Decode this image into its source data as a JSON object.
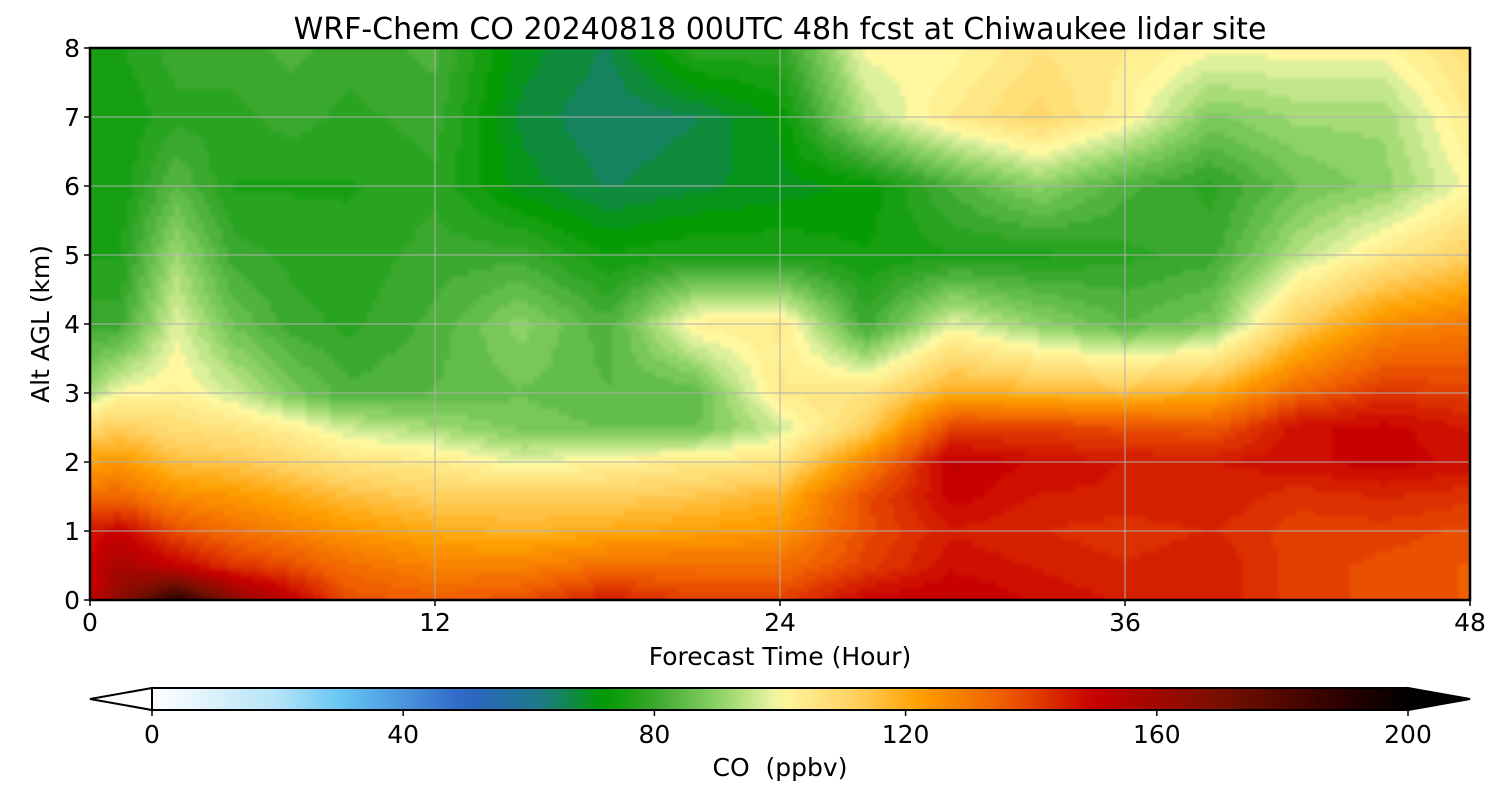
{
  "chart_data": {
    "type": "heatmap",
    "title": "WRF-Chem CO  20240818 00UTC 48h fcst at Chiwaukee lidar site",
    "xlabel": "Forecast Time (Hour)",
    "ylabel": "Alt AGL (km)",
    "xlim": [
      0,
      48
    ],
    "ylim": [
      0,
      8
    ],
    "xticks": [
      "0",
      "12",
      "24",
      "36",
      "48"
    ],
    "yticks": [
      "0",
      "1",
      "2",
      "3",
      "4",
      "5",
      "6",
      "7",
      "8"
    ],
    "grid": true,
    "colorbar": {
      "label": "CO  (ppbv)",
      "range": [
        0,
        200
      ],
      "ticks": [
        "0",
        "40",
        "80",
        "120",
        "160",
        "200"
      ],
      "extend": "both",
      "colors": [
        {
          "value": 0,
          "color": "#ffffff"
        },
        {
          "value": 20,
          "color": "#b4e4f8"
        },
        {
          "value": 30,
          "color": "#66c6f4"
        },
        {
          "value": 50,
          "color": "#2e64c6"
        },
        {
          "value": 62,
          "color": "#1e7a86"
        },
        {
          "value": 72,
          "color": "#009a00"
        },
        {
          "value": 80,
          "color": "#3aa82e"
        },
        {
          "value": 90,
          "color": "#8cd264"
        },
        {
          "value": 98,
          "color": "#e2f2a0"
        },
        {
          "value": 100,
          "color": "#fff8a0"
        },
        {
          "value": 112,
          "color": "#ffd060"
        },
        {
          "value": 122,
          "color": "#ffa000"
        },
        {
          "value": 135,
          "color": "#f06000"
        },
        {
          "value": 150,
          "color": "#c80000"
        },
        {
          "value": 170,
          "color": "#781000"
        },
        {
          "value": 190,
          "color": "#2a0000"
        },
        {
          "value": 200,
          "color": "#000000"
        }
      ]
    },
    "profiles": [
      {
        "hour": 0,
        "alt_km": [
          0,
          0.5,
          1,
          1.5,
          2,
          2.5,
          3,
          4,
          5,
          6,
          7,
          8
        ],
        "co_ppbv": [
          150,
          150,
          146,
          132,
          122,
          110,
          92,
          80,
          76,
          74,
          74,
          76
        ]
      },
      {
        "hour": 1,
        "alt_km": [
          0,
          0.5,
          1,
          1.5,
          2,
          2.5,
          3,
          4,
          5,
          6,
          7,
          8
        ],
        "co_ppbv": [
          165,
          158,
          150,
          134,
          124,
          112,
          100,
          80,
          76,
          74,
          74,
          76
        ]
      },
      {
        "hour": 3,
        "alt_km": [
          0,
          0.5,
          1,
          1.5,
          2,
          2.5,
          3,
          4,
          5,
          6,
          7,
          8
        ],
        "co_ppbv": [
          190,
          150,
          138,
          126,
          116,
          108,
          102,
          98,
          92,
          84,
          78,
          80
        ]
      },
      {
        "hour": 5,
        "alt_km": [
          0,
          0.5,
          1,
          1.5,
          2,
          2.5,
          3,
          4,
          5,
          6,
          7,
          8
        ],
        "co_ppbv": [
          165,
          142,
          132,
          124,
          114,
          106,
          96,
          86,
          80,
          76,
          78,
          80
        ]
      },
      {
        "hour": 7,
        "alt_km": [
          0,
          0.5,
          1,
          1.5,
          2,
          2.5,
          3,
          4,
          5,
          6,
          7,
          8
        ],
        "co_ppbv": [
          152,
          138,
          128,
          120,
          110,
          102,
          88,
          80,
          78,
          76,
          80,
          82
        ]
      },
      {
        "hour": 9,
        "alt_km": [
          0,
          0.5,
          1,
          1.5,
          2,
          2.5,
          3,
          4,
          5,
          6,
          7,
          8
        ],
        "co_ppbv": [
          138,
          132,
          124,
          116,
          106,
          96,
          82,
          78,
          77,
          76,
          78,
          80
        ]
      },
      {
        "hour": 12,
        "alt_km": [
          0,
          0.5,
          1,
          1.5,
          2,
          2.5,
          3,
          4,
          5,
          6,
          7,
          8
        ],
        "co_ppbv": [
          135,
          128,
          120,
          112,
          104,
          92,
          84,
          82,
          80,
          78,
          80,
          82
        ]
      },
      {
        "hour": 15,
        "alt_km": [
          0,
          0.5,
          1,
          1.5,
          2,
          2.5,
          3,
          4,
          5,
          6,
          7,
          8
        ],
        "co_ppbv": [
          138,
          128,
          118,
          112,
          98,
          88,
          86,
          90,
          80,
          70,
          68,
          70
        ]
      },
      {
        "hour": 18,
        "alt_km": [
          0,
          0.5,
          1,
          1.5,
          2,
          2.5,
          3,
          4,
          5,
          6,
          7,
          8
        ],
        "co_ppbv": [
          146,
          132,
          120,
          112,
          102,
          86,
          84,
          82,
          74,
          66,
          64,
          66
        ]
      },
      {
        "hour": 21,
        "alt_km": [
          0,
          0.5,
          1,
          1.5,
          2,
          2.5,
          3,
          4,
          5,
          6,
          7,
          8
        ],
        "co_ppbv": [
          140,
          132,
          122,
          114,
          104,
          86,
          84,
          102,
          76,
          68,
          66,
          78
        ]
      },
      {
        "hour": 24,
        "alt_km": [
          0,
          0.5,
          1,
          1.5,
          2,
          2.5,
          3,
          4,
          5,
          6,
          7,
          8
        ],
        "co_ppbv": [
          140,
          132,
          124,
          118,
          106,
          96,
          104,
          104,
          76,
          70,
          72,
          78
        ]
      },
      {
        "hour": 27,
        "alt_km": [
          0,
          0.5,
          1,
          1.5,
          2,
          2.5,
          3,
          4,
          5,
          6,
          7,
          8
        ],
        "co_ppbv": [
          150,
          140,
          138,
          138,
          128,
          112,
          106,
          80,
          74,
          72,
          94,
          100
        ]
      },
      {
        "hour": 30,
        "alt_km": [
          0,
          0.5,
          1,
          1.5,
          2,
          2.5,
          3,
          4,
          5,
          6,
          7,
          8
        ],
        "co_ppbv": [
          152,
          148,
          146,
          150,
          152,
          140,
          120,
          98,
          76,
          82,
          104,
          100
        ]
      },
      {
        "hour": 33,
        "alt_km": [
          0,
          0.5,
          1,
          1.5,
          2,
          2.5,
          3,
          4,
          5,
          6,
          7,
          8
        ],
        "co_ppbv": [
          148,
          146,
          144,
          146,
          148,
          140,
          118,
          90,
          76,
          90,
          110,
          106
        ]
      },
      {
        "hour": 36,
        "alt_km": [
          0,
          0.5,
          1,
          1.5,
          2,
          2.5,
          3,
          4,
          5,
          6,
          7,
          8
        ],
        "co_ppbv": [
          146,
          144,
          142,
          146,
          146,
          138,
          116,
          84,
          78,
          82,
          102,
          104
        ]
      },
      {
        "hour": 39,
        "alt_km": [
          0,
          0.5,
          1,
          1.5,
          2,
          2.5,
          3,
          4,
          5,
          6,
          7,
          8
        ],
        "co_ppbv": [
          146,
          146,
          144,
          146,
          146,
          136,
          120,
          88,
          80,
          78,
          88,
          100
        ]
      },
      {
        "hour": 42,
        "alt_km": [
          0,
          0.5,
          1,
          1.5,
          2,
          2.5,
          3,
          4,
          5,
          6,
          7,
          8
        ],
        "co_ppbv": [
          140,
          140,
          140,
          142,
          148,
          148,
          134,
          112,
          94,
          86,
          92,
          100
        ]
      },
      {
        "hour": 45,
        "alt_km": [
          0,
          0.5,
          1,
          1.5,
          2,
          2.5,
          3,
          4,
          5,
          6,
          7,
          8
        ],
        "co_ppbv": [
          138,
          138,
          140,
          144,
          150,
          150,
          142,
          126,
          104,
          90,
          92,
          100
        ]
      },
      {
        "hour": 48,
        "alt_km": [
          0,
          0.5,
          1,
          1.5,
          2,
          2.5,
          3,
          4,
          5,
          6,
          7,
          8
        ],
        "co_ppbv": [
          136,
          136,
          138,
          142,
          148,
          146,
          140,
          130,
          112,
          100,
          104,
          108
        ]
      }
    ]
  }
}
